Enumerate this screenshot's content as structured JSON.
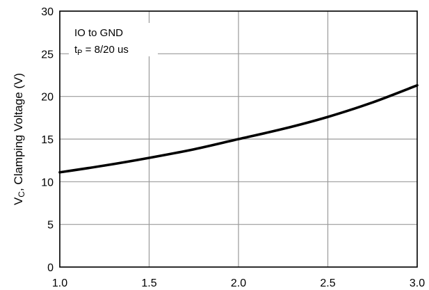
{
  "chart_data": {
    "type": "line",
    "title": "",
    "xlabel": "",
    "ylabel": {
      "symbol": "V",
      "subscript": "C",
      "text": ", Clamping Voltage (V)"
    },
    "xlim": [
      1.0,
      3.0
    ],
    "ylim": [
      0,
      30
    ],
    "x_ticks": [
      "1.0",
      "1.5",
      "2.0",
      "2.5",
      "3.0"
    ],
    "y_ticks": [
      "0",
      "5",
      "10",
      "15",
      "20",
      "25",
      "30"
    ],
    "grid": true,
    "annotation": {
      "line1": "IO to GND",
      "line2_symbol": "t",
      "line2_subscript": "P",
      "line2_text": " = 8/20 us"
    },
    "series": [
      {
        "color": "#000000",
        "x": [
          1.0,
          1.25,
          1.5,
          1.75,
          2.0,
          2.25,
          2.5,
          2.75,
          3.0
        ],
        "y": [
          11.1,
          11.9,
          12.8,
          13.8,
          15.0,
          16.2,
          17.6,
          19.3,
          21.3
        ]
      }
    ]
  }
}
